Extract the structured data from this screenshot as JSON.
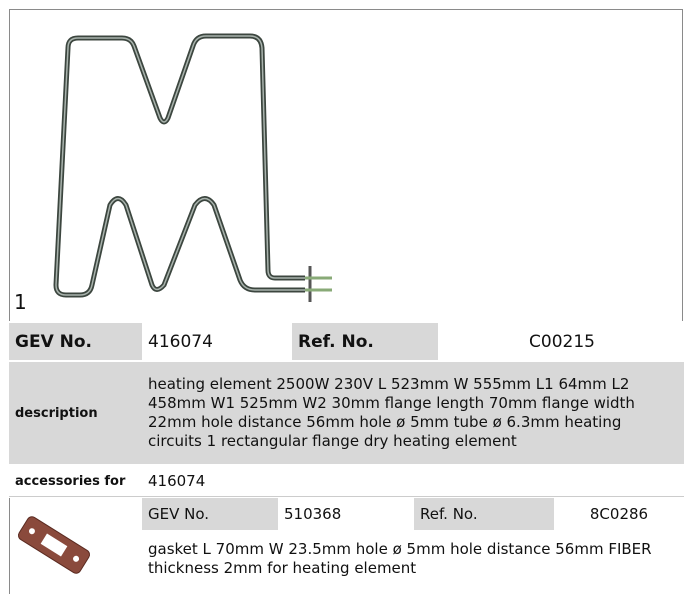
{
  "figure": {
    "label": "1"
  },
  "product": {
    "gev_label": "GEV No.",
    "gev_no": "416074",
    "ref_label": "Ref. No.",
    "ref_no": "C00215",
    "description_label": "description",
    "description": "heating element  2500W 230V L 523mm W 555mm L1 64mm L2 458mm W1 525mm W2 30mm flange length 70mm flange width 22mm hole distance 56mm hole ø 5mm tube ø 6.3mm heating circuits 1 rectangular flange dry heating element",
    "accessories_label": "accessories for",
    "accessories_for": "416074"
  },
  "accessory": {
    "gev_label": "GEV No.",
    "gev_no": "510368",
    "ref_label": "Ref. No.",
    "ref_no": "8C0286",
    "description": "gasket  L 70mm W 23.5mm hole ø 5mm hole distance 56mm FIBER thickness 2mm for heating element"
  }
}
